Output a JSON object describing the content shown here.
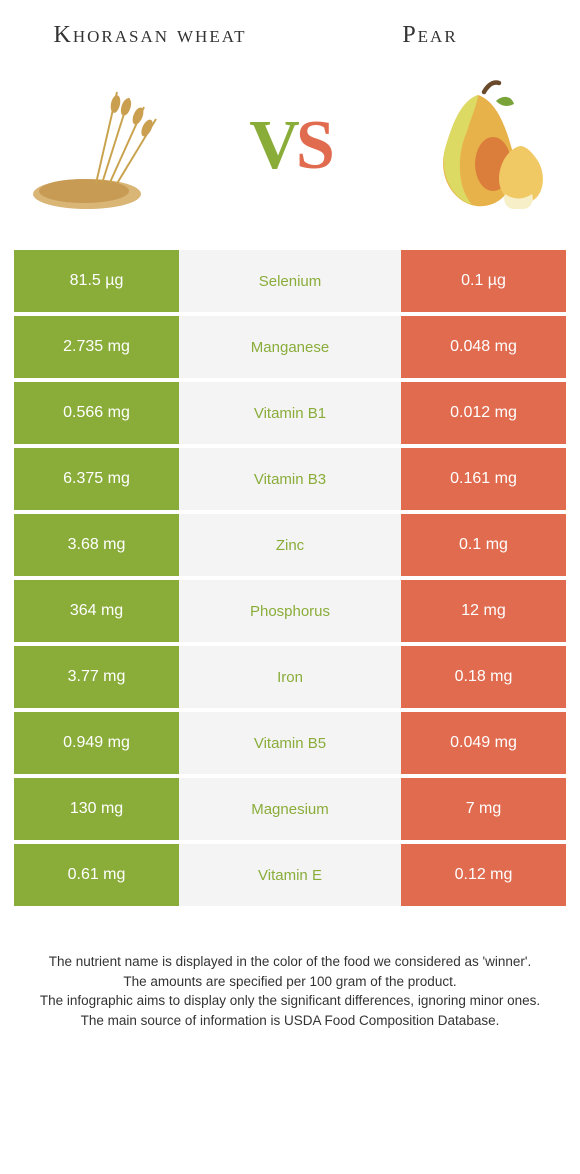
{
  "header": {
    "left_title": "Khorasan wheat",
    "right_title": "Pear"
  },
  "vs": {
    "v": "V",
    "s": "S"
  },
  "colors": {
    "green": "#8aad3a",
    "orange": "#e06b4e",
    "mid_bg": "#f4f4f4",
    "text": "#333333",
    "white": "#ffffff"
  },
  "table": {
    "rows": [
      {
        "nutrient": "Selenium",
        "left": "81.5 µg",
        "right": "0.1 µg",
        "winner": "left"
      },
      {
        "nutrient": "Manganese",
        "left": "2.735 mg",
        "right": "0.048 mg",
        "winner": "left"
      },
      {
        "nutrient": "Vitamin B1",
        "left": "0.566 mg",
        "right": "0.012 mg",
        "winner": "left"
      },
      {
        "nutrient": "Vitamin B3",
        "left": "6.375 mg",
        "right": "0.161 mg",
        "winner": "left"
      },
      {
        "nutrient": "Zinc",
        "left": "3.68 mg",
        "right": "0.1 mg",
        "winner": "left"
      },
      {
        "nutrient": "Phosphorus",
        "left": "364 mg",
        "right": "12 mg",
        "winner": "left"
      },
      {
        "nutrient": "Iron",
        "left": "3.77 mg",
        "right": "0.18 mg",
        "winner": "left"
      },
      {
        "nutrient": "Vitamin B5",
        "left": "0.949 mg",
        "right": "0.049 mg",
        "winner": "left"
      },
      {
        "nutrient": "Magnesium",
        "left": "130 mg",
        "right": "7 mg",
        "winner": "left"
      },
      {
        "nutrient": "Vitamin E",
        "left": "0.61 mg",
        "right": "0.12 mg",
        "winner": "left"
      }
    ]
  },
  "footer": {
    "line1": "The nutrient name is displayed in the color of the food we considered as 'winner'.",
    "line2": "The amounts are specified per 100 gram of the product.",
    "line3": "The infographic aims to display only the significant differences, ignoring minor ones.",
    "line4": "The main source of information is USDA Food Composition Database."
  }
}
